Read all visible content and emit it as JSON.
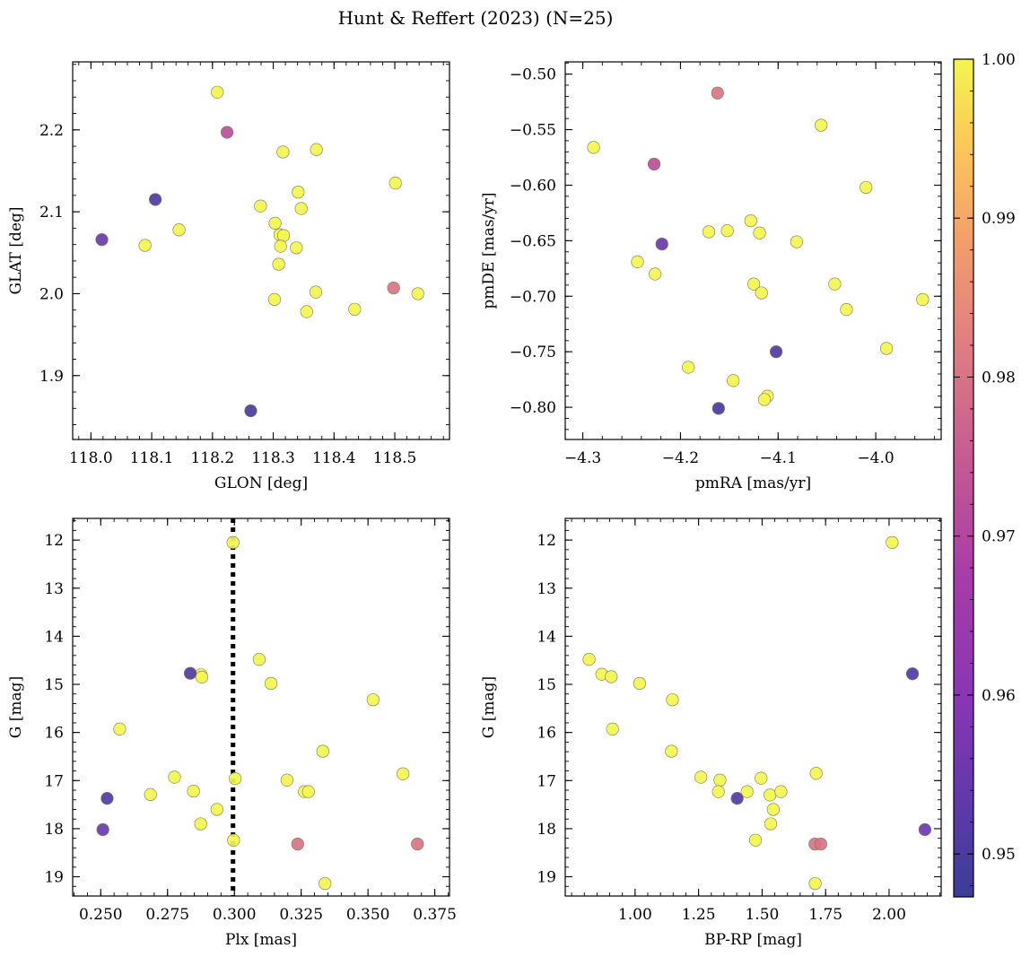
{
  "figure": {
    "title": "Hunt & Reffert (2023) (N=25)",
    "colorbar": {
      "colormap": "plasma",
      "vmin": 0.9473,
      "vmax": 1.0,
      "ticks": [
        0.95,
        0.96,
        0.97,
        0.98,
        0.99,
        1.0
      ],
      "tick_labels": [
        "0.95",
        "0.96",
        "0.97",
        "0.98",
        "0.99",
        "1.00"
      ]
    }
  },
  "chart_data": [
    {
      "type": "scatter",
      "xlabel": "GLON [deg]",
      "ylabel": "GLAT [deg]",
      "xlim": [
        117.97,
        118.59
      ],
      "ylim": [
        1.822,
        2.283
      ],
      "y_inverted": false,
      "xticks": [
        118.0,
        118.1,
        118.2,
        118.3,
        118.4,
        118.5
      ],
      "xtick_labels": [
        "118.0",
        "118.1",
        "118.2",
        "118.3",
        "118.4",
        "118.5"
      ],
      "yticks": [
        1.9,
        2.0,
        2.1,
        2.2
      ],
      "ytick_labels": [
        "1.9",
        "2.0",
        "2.1",
        "2.2"
      ],
      "points": [
        {
          "x": 118.208,
          "y": 2.246,
          "c": 1.0
        },
        {
          "x": 118.224,
          "y": 2.197,
          "c": 0.972
        },
        {
          "x": 118.316,
          "y": 2.173,
          "c": 1.0
        },
        {
          "x": 118.371,
          "y": 2.176,
          "c": 1.0
        },
        {
          "x": 118.106,
          "y": 2.115,
          "c": 0.951
        },
        {
          "x": 118.018,
          "y": 2.066,
          "c": 0.955
        },
        {
          "x": 118.089,
          "y": 2.059,
          "c": 1.0
        },
        {
          "x": 118.145,
          "y": 2.078,
          "c": 1.0
        },
        {
          "x": 118.279,
          "y": 2.107,
          "c": 1.0
        },
        {
          "x": 118.341,
          "y": 2.124,
          "c": 1.0
        },
        {
          "x": 118.346,
          "y": 2.104,
          "c": 1.0
        },
        {
          "x": 118.303,
          "y": 2.086,
          "c": 1.0
        },
        {
          "x": 118.311,
          "y": 2.072,
          "c": 1.0
        },
        {
          "x": 118.317,
          "y": 2.071,
          "c": 1.0
        },
        {
          "x": 118.312,
          "y": 2.058,
          "c": 1.0
        },
        {
          "x": 118.338,
          "y": 2.056,
          "c": 1.0
        },
        {
          "x": 118.309,
          "y": 2.036,
          "c": 1.0
        },
        {
          "x": 118.501,
          "y": 2.135,
          "c": 1.0
        },
        {
          "x": 118.498,
          "y": 2.007,
          "c": 0.98
        },
        {
          "x": 118.538,
          "y": 2.0,
          "c": 1.0
        },
        {
          "x": 118.37,
          "y": 2.002,
          "c": 1.0
        },
        {
          "x": 118.302,
          "y": 1.993,
          "c": 1.0
        },
        {
          "x": 118.355,
          "y": 1.978,
          "c": 1.0
        },
        {
          "x": 118.434,
          "y": 1.981,
          "c": 1.0
        },
        {
          "x": 118.263,
          "y": 1.857,
          "c": 0.95
        }
      ]
    },
    {
      "type": "scatter",
      "xlabel": "pmRA [mas/yr]",
      "ylabel": "pmDE [mas/yr]",
      "xlim": [
        -4.318,
        -3.933
      ],
      "ylim": [
        -0.829,
        -0.489
      ],
      "y_inverted": false,
      "xticks": [
        -4.3,
        -4.2,
        -4.1,
        -4.0
      ],
      "xtick_labels": [
        "−4.3",
        "−4.2",
        "−4.1",
        "−4.0"
      ],
      "yticks": [
        -0.8,
        -0.75,
        -0.7,
        -0.65,
        -0.6,
        -0.55,
        -0.5
      ],
      "ytick_labels": [
        "−0.80",
        "−0.75",
        "−0.70",
        "−0.65",
        "−0.60",
        "−0.55",
        "−0.50"
      ],
      "points": [
        {
          "x": -4.162,
          "y": -0.517,
          "c": 0.98
        },
        {
          "x": -4.289,
          "y": -0.566,
          "c": 1.0
        },
        {
          "x": -4.227,
          "y": -0.581,
          "c": 0.972
        },
        {
          "x": -4.056,
          "y": -0.546,
          "c": 1.0
        },
        {
          "x": -4.01,
          "y": -0.602,
          "c": 1.0
        },
        {
          "x": -4.219,
          "y": -0.653,
          "c": 0.955
        },
        {
          "x": -4.171,
          "y": -0.642,
          "c": 1.0
        },
        {
          "x": -4.152,
          "y": -0.641,
          "c": 1.0
        },
        {
          "x": -4.128,
          "y": -0.632,
          "c": 1.0
        },
        {
          "x": -4.119,
          "y": -0.643,
          "c": 1.0
        },
        {
          "x": -4.081,
          "y": -0.651,
          "c": 1.0
        },
        {
          "x": -4.244,
          "y": -0.669,
          "c": 1.0
        },
        {
          "x": -4.226,
          "y": -0.68,
          "c": 1.0
        },
        {
          "x": -4.125,
          "y": -0.689,
          "c": 1.0
        },
        {
          "x": -4.117,
          "y": -0.697,
          "c": 1.0
        },
        {
          "x": -4.042,
          "y": -0.689,
          "c": 1.0
        },
        {
          "x": -4.03,
          "y": -0.712,
          "c": 1.0
        },
        {
          "x": -3.952,
          "y": -0.703,
          "c": 1.0
        },
        {
          "x": -4.102,
          "y": -0.75,
          "c": 0.951
        },
        {
          "x": -3.989,
          "y": -0.747,
          "c": 1.0
        },
        {
          "x": -4.192,
          "y": -0.764,
          "c": 1.0
        },
        {
          "x": -4.146,
          "y": -0.776,
          "c": 1.0
        },
        {
          "x": -4.111,
          "y": -0.79,
          "c": 1.0
        },
        {
          "x": -4.114,
          "y": -0.793,
          "c": 1.0
        },
        {
          "x": -4.161,
          "y": -0.801,
          "c": 0.95
        }
      ]
    },
    {
      "type": "scatter",
      "xlabel": "Plx [mas]",
      "ylabel": "G [mag]",
      "xlim": [
        0.2395,
        0.3805
      ],
      "ylim": [
        19.4,
        11.55
      ],
      "y_inverted": true,
      "xticks": [
        0.25,
        0.275,
        0.3,
        0.325,
        0.35,
        0.375
      ],
      "xtick_labels": [
        "0.250",
        "0.275",
        "0.300",
        "0.325",
        "0.350",
        "0.375"
      ],
      "yticks": [
        12,
        13,
        14,
        15,
        16,
        17,
        18,
        19
      ],
      "ytick_labels": [
        "12",
        "13",
        "14",
        "15",
        "16",
        "17",
        "18",
        "19"
      ],
      "vline": {
        "x": 0.2995,
        "style": "dotted",
        "color": "#000000"
      },
      "points": [
        {
          "x": 0.2995,
          "y": 12.05,
          "c": 1.0
        },
        {
          "x": 0.3093,
          "y": 14.48,
          "c": 1.0
        },
        {
          "x": 0.2835,
          "y": 14.77,
          "c": 0.951
        },
        {
          "x": 0.2875,
          "y": 14.8,
          "c": 1.0
        },
        {
          "x": 0.2878,
          "y": 14.85,
          "c": 1.0
        },
        {
          "x": 0.3137,
          "y": 14.98,
          "c": 1.0
        },
        {
          "x": 0.3519,
          "y": 15.32,
          "c": 1.0
        },
        {
          "x": 0.2571,
          "y": 15.93,
          "c": 1.0
        },
        {
          "x": 0.3331,
          "y": 16.39,
          "c": 1.0
        },
        {
          "x": 0.3631,
          "y": 16.86,
          "c": 1.0
        },
        {
          "x": 0.2776,
          "y": 16.93,
          "c": 1.0
        },
        {
          "x": 0.3003,
          "y": 16.96,
          "c": 1.0
        },
        {
          "x": 0.3197,
          "y": 16.99,
          "c": 1.0
        },
        {
          "x": 0.2524,
          "y": 17.37,
          "c": 0.951
        },
        {
          "x": 0.2686,
          "y": 17.29,
          "c": 1.0
        },
        {
          "x": 0.2847,
          "y": 17.22,
          "c": 1.0
        },
        {
          "x": 0.3262,
          "y": 17.23,
          "c": 1.0
        },
        {
          "x": 0.3277,
          "y": 17.23,
          "c": 1.0
        },
        {
          "x": 0.2935,
          "y": 17.6,
          "c": 1.0
        },
        {
          "x": 0.2874,
          "y": 17.9,
          "c": 1.0
        },
        {
          "x": 0.2508,
          "y": 18.02,
          "c": 0.955
        },
        {
          "x": 0.2997,
          "y": 18.24,
          "c": 1.0
        },
        {
          "x": 0.3237,
          "y": 18.32,
          "c": 0.98
        },
        {
          "x": 0.3685,
          "y": 18.32,
          "c": 0.98
        },
        {
          "x": 0.3339,
          "y": 19.14,
          "c": 1.0
        }
      ]
    },
    {
      "type": "scatter",
      "xlabel": "BP-RP [mag]",
      "ylabel": "G [mag]",
      "xlim": [
        0.725,
        2.205
      ],
      "ylim": [
        19.4,
        11.55
      ],
      "y_inverted": true,
      "xticks": [
        1.0,
        1.25,
        1.5,
        1.75,
        2.0
      ],
      "xtick_labels": [
        "1.00",
        "1.25",
        "1.50",
        "1.75",
        "2.00"
      ],
      "yticks": [
        12,
        13,
        14,
        15,
        16,
        17,
        18,
        19
      ],
      "ytick_labels": [
        "12",
        "13",
        "14",
        "15",
        "16",
        "17",
        "18",
        "19"
      ],
      "points": [
        {
          "x": 2.012,
          "y": 12.05,
          "c": 1.0
        },
        {
          "x": 0.819,
          "y": 14.48,
          "c": 1.0
        },
        {
          "x": 0.869,
          "y": 14.79,
          "c": 1.0
        },
        {
          "x": 0.906,
          "y": 14.84,
          "c": 1.0
        },
        {
          "x": 1.018,
          "y": 14.98,
          "c": 1.0
        },
        {
          "x": 2.092,
          "y": 14.78,
          "c": 0.951
        },
        {
          "x": 1.147,
          "y": 15.32,
          "c": 1.0
        },
        {
          "x": 0.911,
          "y": 15.93,
          "c": 1.0
        },
        {
          "x": 1.143,
          "y": 16.39,
          "c": 1.0
        },
        {
          "x": 1.259,
          "y": 16.93,
          "c": 1.0
        },
        {
          "x": 1.334,
          "y": 16.99,
          "c": 1.0
        },
        {
          "x": 1.496,
          "y": 16.95,
          "c": 1.0
        },
        {
          "x": 1.713,
          "y": 16.85,
          "c": 1.0
        },
        {
          "x": 1.328,
          "y": 17.23,
          "c": 1.0
        },
        {
          "x": 1.441,
          "y": 17.23,
          "c": 1.0
        },
        {
          "x": 1.531,
          "y": 17.3,
          "c": 1.0
        },
        {
          "x": 1.574,
          "y": 17.23,
          "c": 1.0
        },
        {
          "x": 1.402,
          "y": 17.37,
          "c": 0.951
        },
        {
          "x": 1.544,
          "y": 17.6,
          "c": 1.0
        },
        {
          "x": 1.534,
          "y": 17.9,
          "c": 1.0
        },
        {
          "x": 2.141,
          "y": 18.02,
          "c": 0.955
        },
        {
          "x": 1.474,
          "y": 18.24,
          "c": 1.0
        },
        {
          "x": 1.708,
          "y": 18.32,
          "c": 0.98
        },
        {
          "x": 1.731,
          "y": 18.32,
          "c": 0.98
        },
        {
          "x": 1.709,
          "y": 19.14,
          "c": 1.0
        }
      ]
    }
  ]
}
